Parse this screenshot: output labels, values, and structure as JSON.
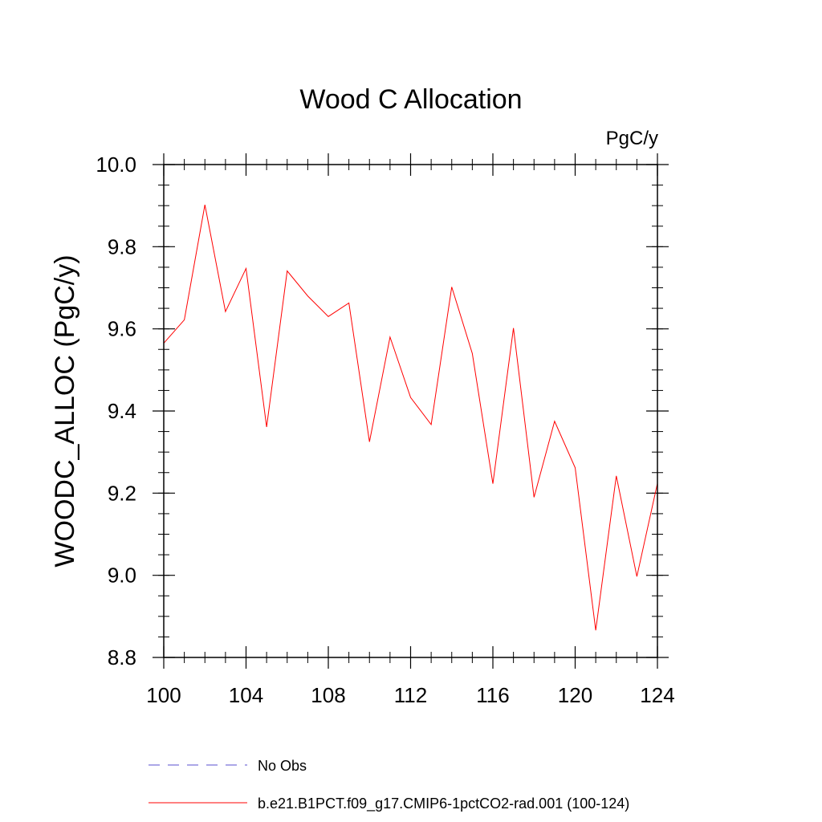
{
  "chart_data": {
    "type": "line",
    "title": "Wood C Allocation",
    "units_label": "PgC/y",
    "ylabel": "WOODC_ALLOC  (PgC/y)",
    "xlabel": "",
    "xlim": [
      100,
      124
    ],
    "ylim": [
      8.8,
      10.0
    ],
    "x_ticks": [
      100,
      104,
      108,
      112,
      116,
      120,
      124
    ],
    "x_tick_labels": [
      "100",
      "104",
      "108",
      "112",
      "116",
      "120",
      "124"
    ],
    "y_ticks": [
      8.8,
      9.0,
      9.2,
      9.4,
      9.6,
      9.8,
      10.0
    ],
    "y_tick_labels": [
      "8.8",
      "9.0",
      "9.2",
      "9.4",
      "9.6",
      "9.8",
      "10.0"
    ],
    "x_minor_step": 1,
    "y_minor_step": 0.05,
    "grid": false,
    "legend_position": "bottom",
    "series": [
      {
        "name": "b.e21.B1PCT.f09_g17.CMIP6-1pctCO2-rad.001 (100-124)",
        "color": "#ff0000",
        "style": "solid",
        "x": [
          100,
          101,
          102,
          103,
          104,
          105,
          106,
          107,
          108,
          109,
          110,
          111,
          112,
          113,
          114,
          115,
          116,
          117,
          118,
          119,
          120,
          121,
          122,
          123,
          124
        ],
        "y": [
          9.565,
          9.622,
          9.902,
          9.642,
          9.747,
          9.361,
          9.741,
          9.68,
          9.63,
          9.663,
          9.325,
          9.58,
          9.433,
          9.367,
          9.702,
          9.54,
          9.223,
          9.602,
          9.19,
          9.375,
          9.262,
          8.866,
          9.242,
          8.997,
          9.224
        ]
      }
    ],
    "legend": [
      {
        "label": "No Obs",
        "color": "#5a4fcf",
        "style": "dashed"
      },
      {
        "label": "b.e21.B1PCT.f09_g17.CMIP6-1pctCO2-rad.001 (100-124)",
        "color": "#ff0000",
        "style": "solid"
      }
    ]
  }
}
